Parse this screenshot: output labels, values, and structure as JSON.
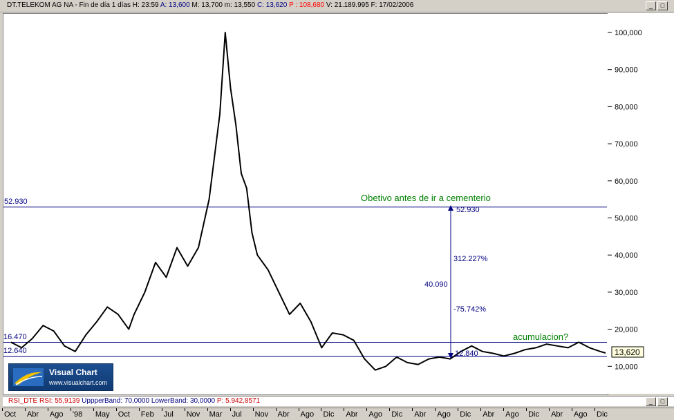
{
  "header": {
    "symbol": "DT.TELEKOM AG NA",
    "period": "Fin de día 1 días",
    "time": "H: 23:59",
    "open": "A: 13,600",
    "high": "M: 13,700",
    "low": "m: 13,550",
    "close": "C: 13,620",
    "p_value": "P : 108,680",
    "volume": "V: 21.189.995",
    "date": "F: 17/02/2006"
  },
  "window_buttons": {
    "minimize": "_",
    "maximize": "□"
  },
  "indicator_bar": {
    "name": "RSI_DTE",
    "rsi": "RSI: 55,9139",
    "upper": "UppperBand: 70,0000",
    "lower": "LowerBand: 30,0000",
    "p": "P: 5.942,8571"
  },
  "logo": {
    "title": "Visual Chart",
    "url": "www.visualchart.com"
  },
  "annotations": {
    "hline_top_label": "52.930",
    "hline_mid_label": "16.470",
    "hline_low_label": "12.640",
    "target_text": "Obetivo antes de ir a cementerio",
    "target_value": "52.930",
    "gain_pct": "312.227%",
    "distance": "40.090",
    "loss_pct": "-75.742%",
    "base_value": "12.840",
    "accum_text": "acumulacion?",
    "last_price": "13,620"
  },
  "chart_data": {
    "type": "line",
    "title": "DT.TELEKOM AG NA",
    "xlabel": "",
    "ylabel": "",
    "ylim": [
      5,
      105
    ],
    "y_ticks": [
      "10,000",
      "20,000",
      "30,000",
      "40,000",
      "50,000",
      "60,000",
      "70,000",
      "80,000",
      "90,000",
      "100,000"
    ],
    "x_tick_labels": [
      "Oct",
      "Abr",
      "Ago",
      "'98",
      "May",
      "Oct",
      "Feb",
      "Jul",
      "Nov",
      "Mar",
      "Jul",
      "Nov",
      "Abr",
      "Ago",
      "Dic",
      "Abr",
      "Ago",
      "Dic",
      "Abr",
      "Ago",
      "Dic",
      "Abr",
      "Ago",
      "Dic",
      "Abr",
      "Ago",
      "Dic"
    ],
    "x_range": [
      "1996-10",
      "2006-02"
    ],
    "series": [
      {
        "values_date_price": [
          [
            "1996-11",
            16.5
          ],
          [
            "1997-01",
            15.0
          ],
          [
            "1997-03",
            17.5
          ],
          [
            "1997-05",
            21.0
          ],
          [
            "1997-07",
            19.5
          ],
          [
            "1997-09",
            15.5
          ],
          [
            "1997-11",
            14.0
          ],
          [
            "1998-01",
            18.5
          ],
          [
            "1998-03",
            22.0
          ],
          [
            "1998-05",
            26.0
          ],
          [
            "1998-07",
            24.0
          ],
          [
            "1998-09",
            20.0
          ],
          [
            "1998-10",
            24.0
          ],
          [
            "1998-12",
            30.0
          ],
          [
            "1999-02",
            38.0
          ],
          [
            "1999-04",
            34.0
          ],
          [
            "1999-06",
            42.0
          ],
          [
            "1999-08",
            37.0
          ],
          [
            "1999-10",
            42.0
          ],
          [
            "1999-12",
            55.0
          ],
          [
            "2000-02",
            78.0
          ],
          [
            "2000-03",
            100.0
          ],
          [
            "2000-04",
            85.0
          ],
          [
            "2000-05",
            75.0
          ],
          [
            "2000-06",
            62.0
          ],
          [
            "2000-07",
            58.0
          ],
          [
            "2000-08",
            46.0
          ],
          [
            "2000-09",
            40.0
          ],
          [
            "2000-11",
            36.0
          ],
          [
            "2001-01",
            30.0
          ],
          [
            "2001-03",
            24.0
          ],
          [
            "2001-05",
            27.0
          ],
          [
            "2001-07",
            22.0
          ],
          [
            "2001-09",
            15.0
          ],
          [
            "2001-11",
            19.0
          ],
          [
            "2002-01",
            18.5
          ],
          [
            "2002-03",
            17.0
          ],
          [
            "2002-05",
            12.0
          ],
          [
            "2002-07",
            9.0
          ],
          [
            "2002-09",
            10.0
          ],
          [
            "2002-11",
            12.5
          ],
          [
            "2003-01",
            11.0
          ],
          [
            "2003-03",
            10.5
          ],
          [
            "2003-05",
            12.0
          ],
          [
            "2003-07",
            12.5
          ],
          [
            "2003-09",
            12.0
          ],
          [
            "2003-11",
            14.0
          ],
          [
            "2004-01",
            15.5
          ],
          [
            "2004-03",
            14.0
          ],
          [
            "2004-05",
            13.5
          ],
          [
            "2004-07",
            12.8
          ],
          [
            "2004-09",
            13.5
          ],
          [
            "2004-11",
            14.5
          ],
          [
            "2005-01",
            15.0
          ],
          [
            "2005-03",
            16.0
          ],
          [
            "2005-05",
            15.5
          ],
          [
            "2005-07",
            15.0
          ],
          [
            "2005-09",
            16.5
          ],
          [
            "2005-11",
            15.0
          ],
          [
            "2006-01",
            14.0
          ],
          [
            "2006-02",
            13.6
          ]
        ]
      }
    ],
    "horizontal_lines": [
      52.93,
      16.47,
      12.64
    ],
    "grid": false,
    "legend": "none",
    "colors": {
      "price": "#000000",
      "hline": "#000080",
      "annotation_green": "#008000",
      "arrow": "#000080",
      "header_red": "#ff0000",
      "header_blue": "#000080"
    }
  }
}
